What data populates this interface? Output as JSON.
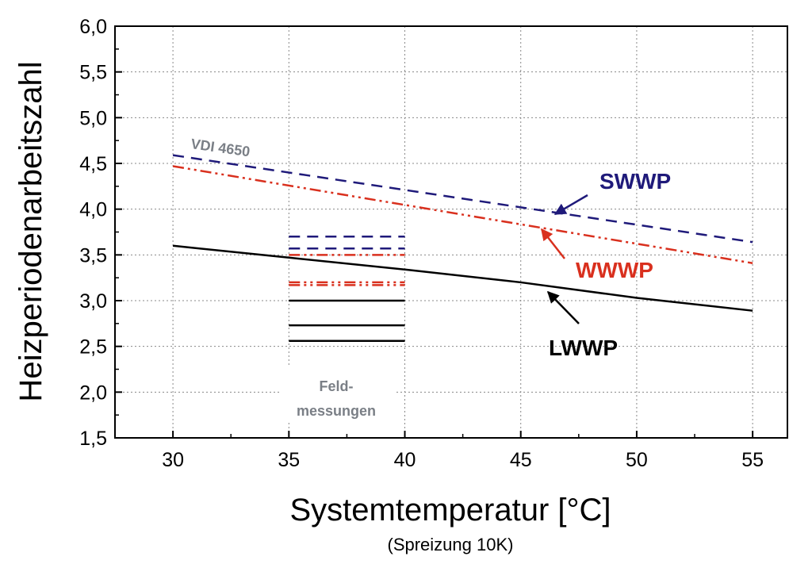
{
  "chart_data": {
    "type": "line",
    "xlabel": "Systemtemperatur [°C]",
    "xlabel_sub": "(Spreizung 10K)",
    "ylabel": "Heizperiodenarbeitszahl",
    "xlim": [
      27.5,
      56.5
    ],
    "ylim": [
      1.5,
      6.0
    ],
    "x_ticks": [
      30,
      35,
      40,
      45,
      50,
      55
    ],
    "y_ticks": [
      1.5,
      2.0,
      2.5,
      3.0,
      3.5,
      4.0,
      4.5,
      5.0,
      5.5,
      6.0
    ],
    "x_tick_labels": [
      "30",
      "35",
      "40",
      "45",
      "50",
      "55"
    ],
    "y_tick_labels": [
      "1,5",
      "2,0",
      "2,5",
      "3,0",
      "3,5",
      "4,0",
      "4,5",
      "5,0",
      "5,5",
      "6,0"
    ],
    "grid": true,
    "colors": {
      "swwp": "#1f1a7a",
      "wwwp": "#d9301e",
      "lwwp": "#000000",
      "note": "#7a7f86"
    },
    "series": [
      {
        "name": "SWWP",
        "style": "dashed",
        "x": [
          30,
          55
        ],
        "y": [
          4.59,
          3.64
        ]
      },
      {
        "name": "WWWP",
        "style": "dash-dot-dot",
        "x": [
          30,
          55
        ],
        "y": [
          4.47,
          3.41
        ]
      },
      {
        "name": "LWWP",
        "style": "solid",
        "x": [
          30,
          35,
          40,
          45,
          50,
          55
        ],
        "y": [
          3.6,
          3.47,
          3.34,
          3.2,
          3.03,
          2.89
        ]
      }
    ],
    "field_measurements": [
      {
        "series": "SWWP",
        "x": [
          35,
          40
        ],
        "y": 3.7
      },
      {
        "series": "SWWP",
        "x": [
          35,
          40
        ],
        "y": 3.57
      },
      {
        "series": "WWWP",
        "x": [
          35,
          40
        ],
        "y": 3.5
      },
      {
        "series": "WWWP",
        "x": [
          35,
          40
        ],
        "y": 3.2
      },
      {
        "series": "WWWP",
        "x": [
          35,
          40
        ],
        "y": 3.17
      },
      {
        "series": "LWWP",
        "x": [
          35,
          40
        ],
        "y": 3.0
      },
      {
        "series": "LWWP",
        "x": [
          35,
          40
        ],
        "y": 2.73
      },
      {
        "series": "LWWP",
        "x": [
          35,
          40
        ],
        "y": 2.56
      }
    ],
    "annotations": {
      "vdi": "VDI 4650",
      "feld_line1": "Feld-",
      "feld_line2": "messungen"
    },
    "labels": {
      "swwp": "SWWP",
      "wwwp": "WWWP",
      "lwwp": "LWWP"
    }
  }
}
